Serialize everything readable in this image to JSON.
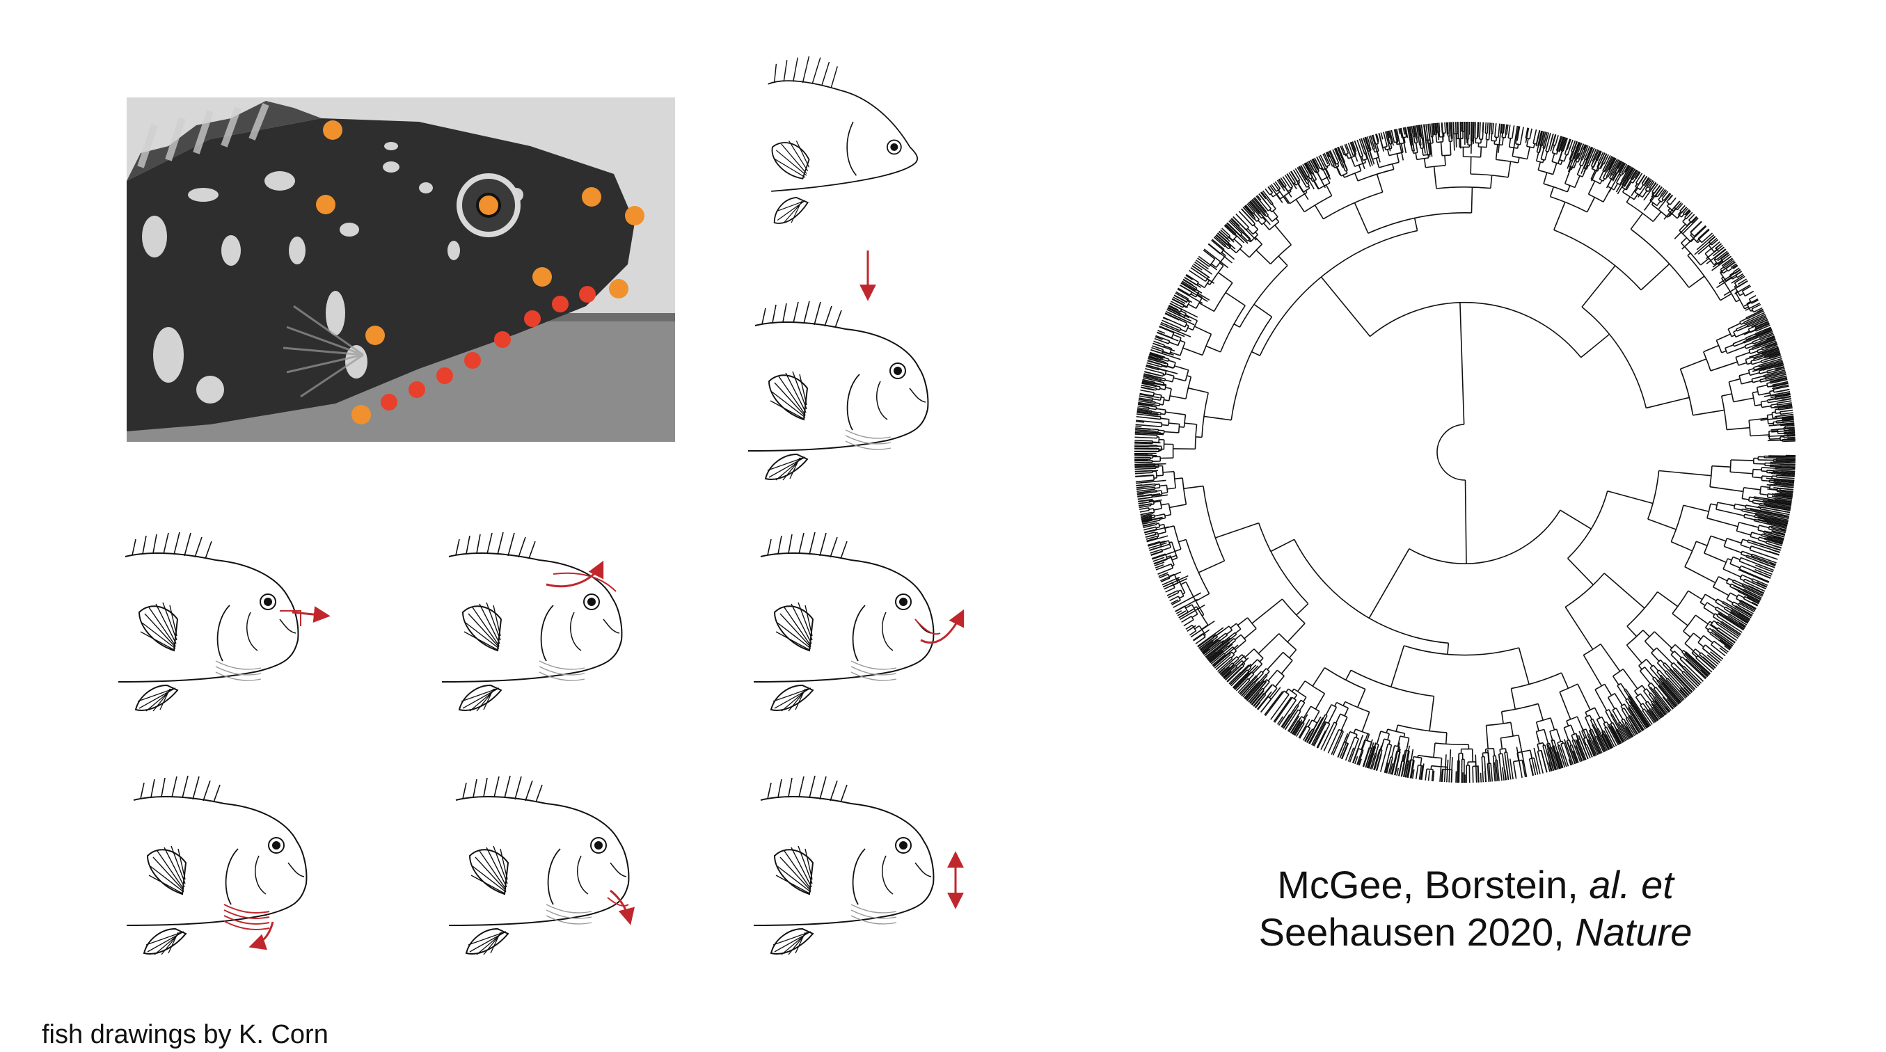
{
  "citation": {
    "line1_plain": "McGee, Borstein, ",
    "line1_italic": "al. et",
    "line2_plain": "Seehausen 2020, ",
    "line2_italic": "Nature"
  },
  "credit": "fish drawings by K. Corn",
  "colors": {
    "landmark_orange": "#f0912e",
    "landmark_red": "#e8402a",
    "arrow_red": "#c0272d",
    "ink": "#111111"
  },
  "figures": {
    "photo": "cichlid-head-photo-with-landmarks",
    "tree": "circular-phylogenetic-tree",
    "drawings": [
      "fish-resting",
      "fish-mouth-open",
      "fish-jaw-protrusion",
      "fish-neurocranial-elevation",
      "fish-lower-jaw-rotation",
      "fish-hyoid-depression",
      "fish-mandible-depression",
      "fish-gape"
    ]
  }
}
